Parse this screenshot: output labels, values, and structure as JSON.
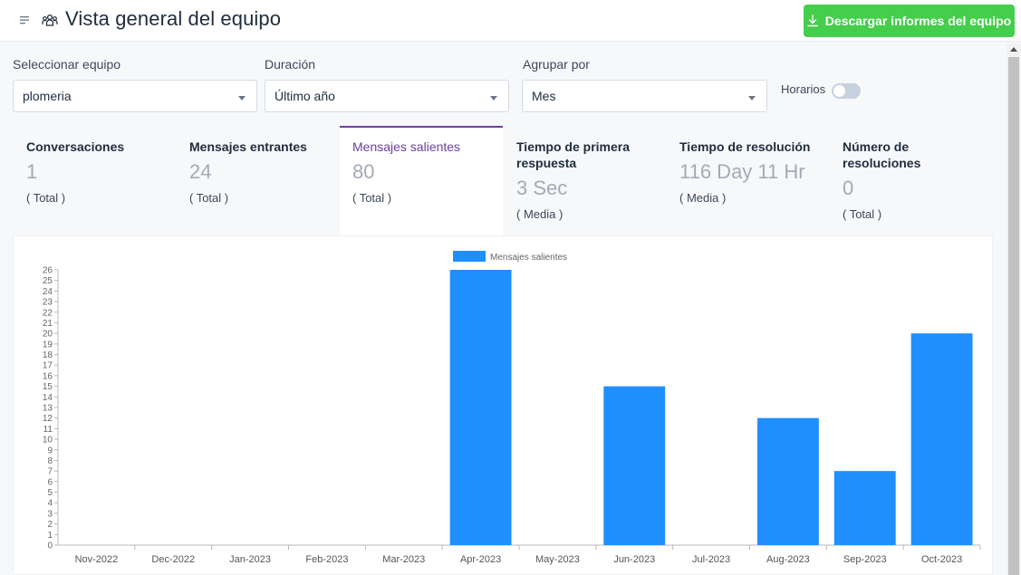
{
  "header": {
    "title": "Vista general del equipo",
    "download_label": "Descargar informes del equipo",
    "icons": {
      "menu": "menu-lines-icon",
      "team": "team-icon",
      "download": "download-icon"
    }
  },
  "filters": {
    "team": {
      "label": "Seleccionar equipo",
      "value": "plomeria"
    },
    "duration": {
      "label": "Duración",
      "value": "Último año"
    },
    "group_by": {
      "label": "Agrupar por",
      "value": "Mes"
    },
    "business_hours": {
      "label": "Horarios",
      "enabled": false
    }
  },
  "metrics": [
    {
      "title": "Conversaciones",
      "value": "1",
      "sub": "( Total )",
      "active": false
    },
    {
      "title": "Mensajes entrantes",
      "value": "24",
      "sub": "( Total )",
      "active": false
    },
    {
      "title": "Mensajes salientes",
      "value": "80",
      "sub": "( Total )",
      "active": true
    },
    {
      "title": "Tiempo de primera respuesta",
      "value": "3 Sec",
      "sub": "( Media )",
      "active": false
    },
    {
      "title": "Tiempo de resolución",
      "value": "116 Day 11 Hr",
      "sub": "( Media )",
      "active": false
    },
    {
      "title": "Número de resoluciones",
      "value": "0",
      "sub": "( Total )",
      "active": false
    }
  ],
  "colors": {
    "accent": "#6b3fa0",
    "download": "#44ce4b",
    "bar": "#1f8ffe"
  },
  "chart_data": {
    "type": "bar",
    "categories": [
      "Nov-2022",
      "Dec-2022",
      "Jan-2023",
      "Feb-2023",
      "Mar-2023",
      "Apr-2023",
      "May-2023",
      "Jun-2023",
      "Jul-2023",
      "Aug-2023",
      "Sep-2023",
      "Oct-2023"
    ],
    "series": [
      {
        "name": "Mensajes salientes",
        "values": [
          0,
          0,
          0,
          0,
          0,
          26,
          0,
          15,
          0,
          12,
          7,
          20
        ]
      }
    ],
    "ylim": [
      0,
      26
    ],
    "legend": "top-center",
    "grid": false
  }
}
